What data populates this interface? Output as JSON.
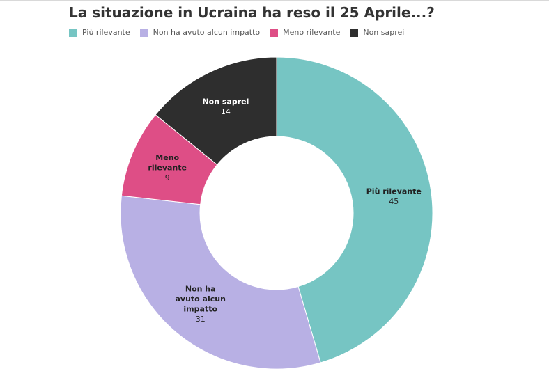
{
  "chart_data": {
    "type": "pie",
    "style": "donut",
    "title": "La situazione in Ucraina ha reso il 25 Aprile...?",
    "categories": [
      "Più rilevante",
      "Non ha avuto alcun impatto",
      "Meno rilevante",
      "Non saprei"
    ],
    "values": [
      45,
      31,
      9,
      14
    ],
    "colors": [
      "#76c5c3",
      "#b8b0e4",
      "#de4e86",
      "#2e2e2e"
    ],
    "label_colors": [
      "#222222",
      "#222222",
      "#222222",
      "#ffffff"
    ],
    "slice_label_lines": [
      [
        "Più rilevante"
      ],
      [
        "Non ha",
        "avuto alcun",
        "impatto"
      ],
      [
        "Meno",
        "rilevante"
      ],
      [
        "Non saprei"
      ]
    ],
    "legend_position": "top-left"
  }
}
